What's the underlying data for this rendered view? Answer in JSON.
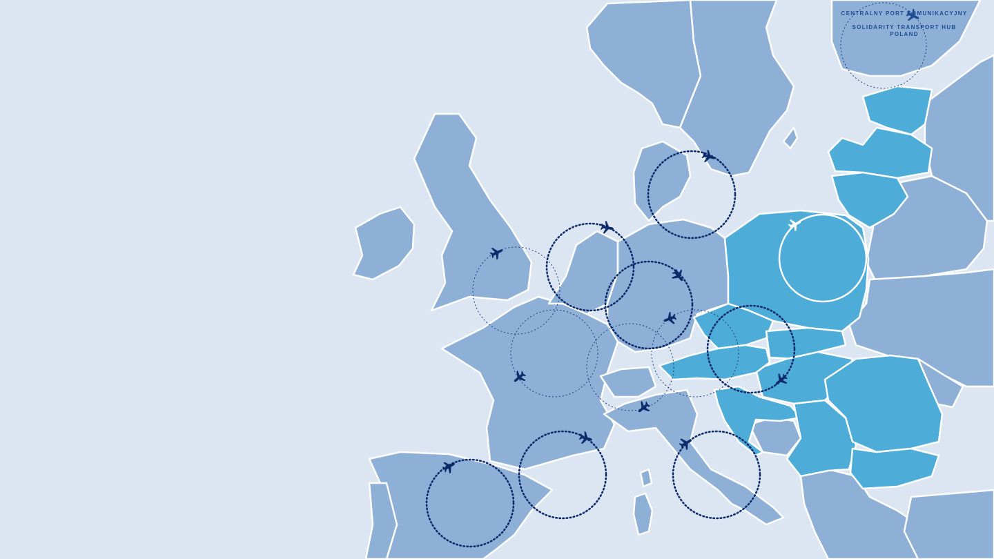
{
  "brand": {
    "name_pl": "CENTRALNY PORT KOMUNIKACYJNY",
    "name_en_line1": "SOLIDARITY TRANSPORT HUB",
    "name_en_line2": "POLAND",
    "logo_icon": "plane-icon"
  },
  "map": {
    "region": "Europe",
    "highlighted_countries": [
      "Poland",
      "Estonia",
      "Latvia",
      "Lithuania",
      "Czechia",
      "Slovakia",
      "Hungary",
      "Austria",
      "Slovenia",
      "Croatia",
      "Serbia",
      "Romania",
      "Bulgaria"
    ],
    "hub": "Poland",
    "flight_ring_icon": "plane-icon",
    "colors": {
      "background": "#dce6f3",
      "land": "#8fb0d6",
      "highlight": "#4eacd9",
      "ring": "#0d2a6b",
      "hub_ring": "#ffffff"
    }
  }
}
